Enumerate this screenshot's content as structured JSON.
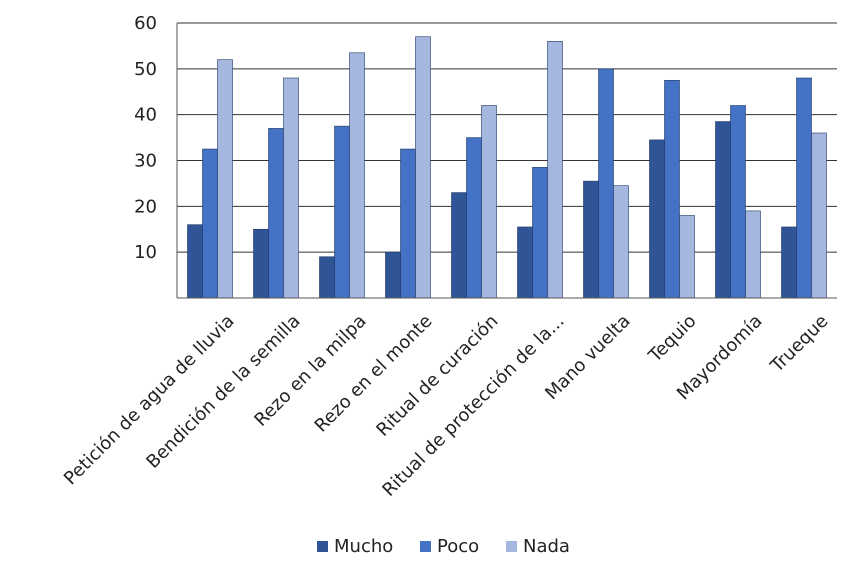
{
  "chart_data": {
    "type": "bar",
    "title": "",
    "xlabel": "",
    "ylabel": "",
    "ylim": [
      0,
      60
    ],
    "yticks": [
      10,
      20,
      30,
      40,
      50,
      60
    ],
    "grid": true,
    "legend_position": "bottom",
    "categories": [
      "Petición de agua de lluvia",
      "Bendición de la semilla",
      "Rezo en la milpa",
      "Rezo en el monte",
      "Ritual de curación",
      "Ritual de protección de la...",
      "Mano vuelta",
      "Tequio",
      "Mayordomía",
      "Trueque"
    ],
    "series": [
      {
        "name": "Mucho",
        "color": "#2f5597",
        "values": [
          16,
          15,
          9,
          10,
          23,
          15.5,
          25.5,
          34.5,
          38.5,
          15.5
        ]
      },
      {
        "name": "Poco",
        "color": "#4472c4",
        "values": [
          32.5,
          37,
          37.5,
          32.5,
          35,
          28.5,
          50,
          47.5,
          42,
          48
        ]
      },
      {
        "name": "Nada",
        "color": "#a5b7de",
        "values": [
          52,
          48,
          53.5,
          57,
          42,
          56,
          24.5,
          18,
          19,
          36
        ]
      }
    ]
  }
}
